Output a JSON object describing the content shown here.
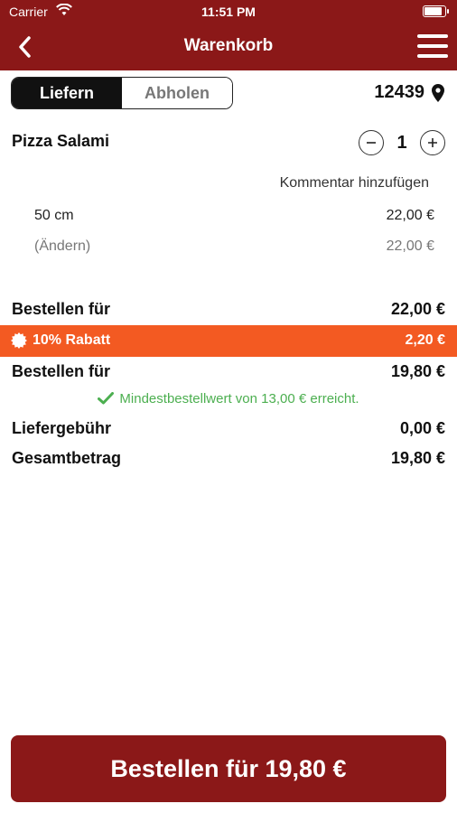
{
  "status_bar": {
    "carrier": "Carrier",
    "time": "11:51 PM"
  },
  "header": {
    "title": "Warenkorb"
  },
  "delivery_toggle": {
    "deliver": "Liefern",
    "pickup": "Abholen",
    "selected": "Liefern"
  },
  "zip": "12439",
  "cart_item": {
    "name": "Pizza Salami",
    "quantity": "1",
    "add_comment": "Kommentar hinzufügen",
    "size_label": "50 cm",
    "size_price": "22,00 €",
    "change_label": "(Ändern)",
    "change_price": "22,00 €"
  },
  "summary": {
    "order_label": "Bestellen für",
    "order_amount": "22,00 €",
    "discount_label": "10% Rabatt",
    "discount_amount": "2,20 €",
    "after_discount_label": "Bestellen für",
    "after_discount_amount": "19,80 €",
    "minimum_note": "Mindestbestellwert von 13,00 € erreicht.",
    "delivery_fee_label": "Liefergebühr",
    "delivery_fee_amount": "0,00 €",
    "total_label": "Gesamtbetrag",
    "total_amount": "19,80 €"
  },
  "order_button": "Bestellen für 19,80 €",
  "colors": {
    "brand": "#8b1818",
    "discount": "#f35a22",
    "success": "#4caf50"
  }
}
